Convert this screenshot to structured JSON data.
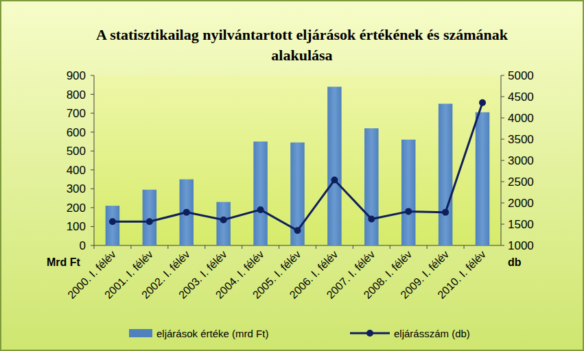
{
  "chart_data": {
    "type": "bar",
    "title": "A statisztikailag nyilvántartott eljárások értékének és számának alakulása",
    "y_label": "Mrd Ft",
    "y2_label": "db",
    "categories": [
      "2000. I. félév",
      "2001. I. félév",
      "2002. I. félév",
      "2003. I. félév",
      "2004. I. félév",
      "2005. I. félév",
      "2006. I. félév",
      "2007. I. félév",
      "2008. I. félév",
      "2009. I. félév",
      "2010. I. félév"
    ],
    "series": [
      {
        "name": "eljárások értéke (mrd Ft)",
        "color": "#4f81bd",
        "type": "bar",
        "values": [
          210,
          295,
          350,
          230,
          550,
          545,
          840,
          620,
          560,
          750,
          705
        ]
      },
      {
        "name": "eljárásszám (db)",
        "color": "#0f1f5c",
        "type": "line",
        "axis": "y2",
        "marker": "circle",
        "values": [
          1560,
          1560,
          1780,
          1600,
          1840,
          1350,
          2540,
          1620,
          1800,
          1780,
          4360
        ]
      }
    ],
    "ylim": [
      0,
      900
    ],
    "yticks": [
      0,
      100,
      200,
      300,
      400,
      500,
      600,
      700,
      800,
      900
    ],
    "y2lim": [
      1000,
      5000
    ],
    "y2ticks": [
      1000,
      1500,
      2000,
      2500,
      3000,
      3500,
      4000,
      4500,
      5000
    ],
    "grid": false,
    "legend": "bottom"
  }
}
